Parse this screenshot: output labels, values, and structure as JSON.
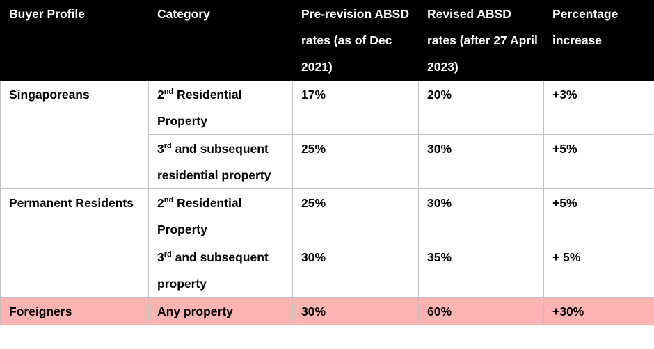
{
  "table": {
    "headers": [
      "Buyer Profile",
      "Category",
      "Pre-revision ABSD rates (as of Dec 2021)",
      "Revised ABSD rates (after 27 April 2023)",
      "Percentage increase"
    ],
    "groups": [
      {
        "buyer": "Singaporeans",
        "rows": [
          {
            "ordinal_num": "2",
            "ordinal_sup": "nd",
            "category_rest": " Residential Property",
            "pre": "17%",
            "revised": "20%",
            "increase": "+3%"
          },
          {
            "ordinal_num": "3",
            "ordinal_sup": "rd",
            "category_rest": " and subsequent residential property",
            "pre": "25%",
            "revised": "30%",
            "increase": "+5%"
          }
        ]
      },
      {
        "buyer": "Permanent Residents",
        "rows": [
          {
            "ordinal_num": "2",
            "ordinal_sup": "nd",
            "category_rest": " Residential Property",
            "pre": "25%",
            "revised": "30%",
            "increase": "+5%"
          },
          {
            "ordinal_num": "3",
            "ordinal_sup": "rd",
            "category_rest": " and subsequent property",
            "pre": "30%",
            "revised": "35%",
            "increase": "+ 5%"
          }
        ]
      },
      {
        "buyer": "Foreigners",
        "rows": [
          {
            "category": "Any property",
            "pre": "30%",
            "revised": "60%",
            "increase": "+30%"
          }
        ]
      }
    ],
    "colors": {
      "header_bg": "#000000",
      "header_text": "#ffffff",
      "foreigners_row_bg": "#ffb3b3",
      "grid_line": "#bfbfbf"
    }
  }
}
